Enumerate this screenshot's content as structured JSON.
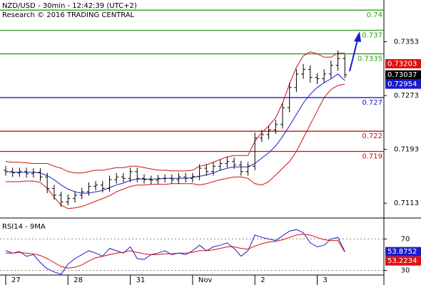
{
  "chart_data": [
    {
      "type": "ohlc",
      "title": "NZD/USD - 30min - 12:42:39 (UTC+2)",
      "subtitle": "Research © 2016 TRADING CENTRAL",
      "categories": [
        "27",
        null,
        null,
        null,
        null,
        null,
        null,
        null,
        null,
        "28",
        null,
        null,
        null,
        null,
        null,
        null,
        null,
        null,
        "31",
        null,
        null,
        null,
        null,
        null,
        null,
        null,
        null,
        "Nov",
        null,
        null,
        null,
        null,
        null,
        null,
        null,
        null,
        "2",
        null,
        null,
        null,
        null,
        null,
        null,
        null,
        null,
        "3",
        null,
        null,
        null,
        null
      ],
      "open": [
        0.7162,
        0.716,
        0.7158,
        0.716,
        0.7157,
        0.7159,
        0.7152,
        0.7135,
        0.7125,
        0.7115,
        0.712,
        0.7125,
        0.713,
        0.7138,
        0.714,
        0.7135,
        0.7148,
        0.7152,
        0.715,
        0.716,
        0.715,
        0.7148,
        0.7147,
        0.715,
        0.715,
        0.7148,
        0.7152,
        0.715,
        0.7153,
        0.7165,
        0.716,
        0.7168,
        0.7172,
        0.7175,
        0.717,
        0.716,
        0.7168,
        0.721,
        0.7215,
        0.7222,
        0.723,
        0.7255,
        0.7285,
        0.7305,
        0.7312,
        0.73,
        0.7298,
        0.7305,
        0.7318,
        0.7328
      ],
      "high": [
        0.7168,
        0.7166,
        0.7166,
        0.7166,
        0.7165,
        0.7165,
        0.7158,
        0.714,
        0.713,
        0.7126,
        0.7131,
        0.7136,
        0.7144,
        0.7146,
        0.7146,
        0.7154,
        0.7158,
        0.7158,
        0.7166,
        0.7166,
        0.7156,
        0.7154,
        0.7155,
        0.7156,
        0.7156,
        0.7158,
        0.7158,
        0.7158,
        0.7171,
        0.7171,
        0.7174,
        0.7178,
        0.7182,
        0.7181,
        0.7176,
        0.7174,
        0.7218,
        0.7222,
        0.7228,
        0.7237,
        0.7262,
        0.7292,
        0.7312,
        0.732,
        0.7318,
        0.7306,
        0.7312,
        0.7325,
        0.734,
        0.7334
      ],
      "low": [
        0.7154,
        0.7152,
        0.7152,
        0.7151,
        0.7151,
        0.7146,
        0.7128,
        0.7118,
        0.7108,
        0.711,
        0.7114,
        0.7119,
        0.7124,
        0.7132,
        0.7129,
        0.713,
        0.7142,
        0.7144,
        0.7144,
        0.7144,
        0.7142,
        0.7141,
        0.7141,
        0.7144,
        0.7142,
        0.7142,
        0.7144,
        0.7144,
        0.7147,
        0.7154,
        0.7154,
        0.7162,
        0.7166,
        0.7164,
        0.7154,
        0.7154,
        0.7162,
        0.7204,
        0.7208,
        0.7216,
        0.7224,
        0.7248,
        0.7278,
        0.7298,
        0.7292,
        0.729,
        0.7292,
        0.7298,
        0.731,
        0.7299
      ],
      "close": [
        0.716,
        0.7158,
        0.716,
        0.7157,
        0.7159,
        0.7152,
        0.7135,
        0.7125,
        0.7115,
        0.712,
        0.7125,
        0.713,
        0.7138,
        0.714,
        0.7135,
        0.7148,
        0.7152,
        0.715,
        0.716,
        0.715,
        0.7148,
        0.7147,
        0.715,
        0.715,
        0.7148,
        0.7152,
        0.715,
        0.7153,
        0.7165,
        0.716,
        0.7168,
        0.7172,
        0.7175,
        0.717,
        0.716,
        0.7168,
        0.721,
        0.7215,
        0.7222,
        0.723,
        0.7255,
        0.7285,
        0.7305,
        0.7312,
        0.73,
        0.7298,
        0.7305,
        0.7318,
        0.7328,
        0.73037
      ],
      "bar_color": "#000000",
      "series": [
        {
          "name": "upper",
          "color": "#d01010",
          "values": [
            0.7175,
            0.7174,
            0.7174,
            0.7173,
            0.7172,
            0.7172,
            0.7172,
            0.7168,
            0.7165,
            0.716,
            0.7158,
            0.7158,
            0.716,
            0.7162,
            0.7162,
            0.7164,
            0.7166,
            0.7166,
            0.7168,
            0.7168,
            0.7166,
            0.7164,
            0.7162,
            0.7162,
            0.7161,
            0.7161,
            0.7161,
            0.7162,
            0.7168,
            0.717,
            0.7174,
            0.7178,
            0.7182,
            0.7184,
            0.7184,
            0.7184,
            0.7205,
            0.7218,
            0.7228,
            0.724,
            0.7262,
            0.729,
            0.7315,
            0.7332,
            0.7338,
            0.7335,
            0.733,
            0.733,
            0.7336,
            0.7336
          ]
        },
        {
          "name": "lower",
          "color": "#d01010",
          "values": [
            0.7145,
            0.7145,
            0.7145,
            0.7146,
            0.7146,
            0.7144,
            0.7135,
            0.7122,
            0.711,
            0.7105,
            0.7106,
            0.7108,
            0.7112,
            0.7116,
            0.712,
            0.7124,
            0.713,
            0.7134,
            0.7138,
            0.714,
            0.714,
            0.7141,
            0.7141,
            0.7141,
            0.7142,
            0.7142,
            0.7142,
            0.7142,
            0.714,
            0.7142,
            0.7145,
            0.7148,
            0.715,
            0.7152,
            0.7152,
            0.715,
            0.7142,
            0.714,
            0.7145,
            0.7155,
            0.7165,
            0.7175,
            0.719,
            0.721,
            0.723,
            0.725,
            0.727,
            0.7282,
            0.7288,
            0.729
          ]
        },
        {
          "name": "ma",
          "color": "#1a1acc",
          "values": [
            0.716,
            0.7159,
            0.7159,
            0.7159,
            0.7159,
            0.7158,
            0.7154,
            0.7148,
            0.714,
            0.7134,
            0.713,
            0.7128,
            0.7128,
            0.713,
            0.7132,
            0.7136,
            0.714,
            0.7143,
            0.7147,
            0.7149,
            0.7149,
            0.7149,
            0.7149,
            0.715,
            0.715,
            0.715,
            0.715,
            0.7151,
            0.7153,
            0.7155,
            0.7158,
            0.7162,
            0.7165,
            0.7167,
            0.7167,
            0.7167,
            0.7172,
            0.718,
            0.7188,
            0.7198,
            0.7212,
            0.7228,
            0.7245,
            0.7262,
            0.7275,
            0.7285,
            0.7292,
            0.7298,
            0.7305,
            0.72954
          ]
        }
      ],
      "levels": {
        "values": [
          0.74,
          0.737,
          0.7335,
          0.727,
          0.722,
          0.719
        ],
        "colors": [
          "#2e9a1e",
          "#2e9a1e",
          "#2e9a1e",
          "#1a1acc",
          "#c81010",
          "#c81010"
        ]
      },
      "price_markers": {
        "values": [
          0.73203,
          0.73037,
          0.72954
        ],
        "colors": [
          "#e01010",
          "#000000",
          "#1a1acc"
        ]
      },
      "ylim": [
        0.7091,
        0.7415
      ],
      "yticks": [
        0.7353,
        0.7273,
        0.7193,
        0.7113
      ]
    },
    {
      "type": "line",
      "title": "RSI14 - 9MA",
      "series": [
        {
          "name": "rsi",
          "color": "#1a1acc",
          "values": [
            55,
            52,
            54,
            48,
            50,
            40,
            32,
            28,
            25,
            38,
            45,
            50,
            55,
            52,
            48,
            58,
            55,
            52,
            60,
            45,
            44,
            50,
            52,
            55,
            50,
            52,
            50,
            55,
            62,
            55,
            60,
            62,
            65,
            58,
            48,
            55,
            75,
            72,
            70,
            68,
            74,
            80,
            82,
            78,
            65,
            60,
            62,
            70,
            72,
            53.8752
          ]
        },
        {
          "name": "ma",
          "color": "#d01010",
          "values": [
            52,
            52,
            53,
            52,
            51,
            49,
            45,
            40,
            35,
            33,
            34,
            37,
            42,
            46,
            48,
            50,
            52,
            53,
            55,
            53,
            51,
            50,
            50,
            51,
            51,
            52,
            52,
            53,
            55,
            55,
            56,
            58,
            60,
            60,
            58,
            57,
            61,
            64,
            66,
            67,
            69,
            72,
            75,
            76,
            75,
            72,
            69,
            68,
            68,
            53.2234
          ]
        }
      ],
      "levels": [
        70,
        30
      ],
      "price_markers": {
        "values": [
          53.8752,
          53.2234
        ],
        "colors": [
          "#1a1acc",
          "#e01010"
        ]
      },
      "ylim": [
        20,
        96.7
      ],
      "yticks": [
        70,
        30
      ]
    }
  ]
}
